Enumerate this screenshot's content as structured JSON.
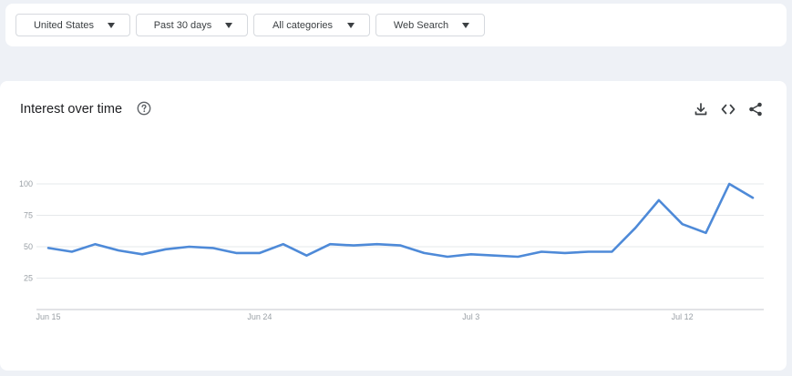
{
  "filters": {
    "region": "United States",
    "time_range": "Past 30 days",
    "category": "All categories",
    "search_type": "Web Search"
  },
  "card": {
    "title": "Interest over time",
    "help_icon": "question-circle-icon",
    "tools": [
      "download-icon",
      "embed-code-icon",
      "share-icon"
    ]
  },
  "colors": {
    "line": "#4e8ad8",
    "gridline": "#e6e8eb",
    "page_bg": "#eef1f6"
  },
  "chart_data": {
    "type": "line",
    "title": "",
    "xlabel": "",
    "ylabel": "",
    "ylim": [
      0,
      100
    ],
    "yticks": [
      25,
      50,
      75,
      100
    ],
    "xtick_labels": [
      {
        "label": "Jun 15",
        "index": 0
      },
      {
        "label": "Jun 24",
        "index": 9
      },
      {
        "label": "Jul 3",
        "index": 18
      },
      {
        "label": "Jul 12",
        "index": 27
      }
    ],
    "x": [
      "Jun 15",
      "Jun 16",
      "Jun 17",
      "Jun 18",
      "Jun 19",
      "Jun 20",
      "Jun 21",
      "Jun 22",
      "Jun 23",
      "Jun 24",
      "Jun 25",
      "Jun 26",
      "Jun 27",
      "Jun 28",
      "Jun 29",
      "Jun 30",
      "Jul 1",
      "Jul 2",
      "Jul 3",
      "Jul 4",
      "Jul 5",
      "Jul 6",
      "Jul 7",
      "Jul 8",
      "Jul 9",
      "Jul 10",
      "Jul 11",
      "Jul 12",
      "Jul 13",
      "Jul 14",
      "Jul 15"
    ],
    "series": [
      {
        "values": [
          49,
          46,
          52,
          47,
          44,
          48,
          50,
          49,
          45,
          45,
          52,
          43,
          52,
          51,
          52,
          51,
          45,
          42,
          44,
          43,
          42,
          46,
          45,
          46,
          46,
          65,
          87,
          68,
          61,
          100,
          89
        ]
      }
    ],
    "grid": true,
    "legend": "none"
  }
}
